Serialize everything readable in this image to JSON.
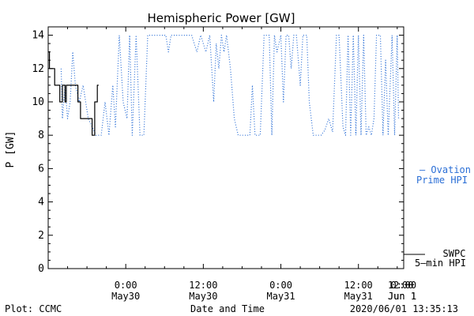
{
  "chart_data": {
    "type": "line",
    "title": "Hemispheric Power [GW]",
    "xlabel": "Date and Time",
    "ylabel": "P [GW]",
    "ylim": [
      0,
      14.5
    ],
    "xlim_hours": [
      -12,
      43
    ],
    "y_ticks": [
      0,
      2,
      4,
      6,
      8,
      10,
      12,
      14
    ],
    "x_ticks": [
      {
        "h": 0,
        "time": "0:00",
        "date": "May30"
      },
      {
        "h": 12,
        "time": "12:00",
        "date": "May30"
      },
      {
        "h": 24,
        "time": "0:00",
        "date": "May31"
      },
      {
        "h": 36,
        "time": "12:00",
        "date": "May31"
      },
      {
        "h": 48,
        "time": "0:00",
        "date": "Jun 1"
      },
      {
        "h": 60,
        "time": "12:00",
        "date": "Jun 1"
      }
    ],
    "grid": false,
    "series": [
      {
        "name": "Ovation Prime HPI",
        "legend_line1": "— Ovation",
        "legend_line2": "Prime HPI",
        "style": "dotted",
        "color": "#2b6fd6",
        "points": [
          [
            -10,
            12
          ],
          [
            -9.8,
            9
          ],
          [
            -9.4,
            11
          ],
          [
            -9,
            9
          ],
          [
            -8.6,
            10
          ],
          [
            -8.2,
            13
          ],
          [
            -7.8,
            11
          ],
          [
            -7.2,
            10
          ],
          [
            -6.6,
            11
          ],
          [
            -5.8,
            9
          ],
          [
            -4.6,
            8
          ],
          [
            -3.8,
            8
          ],
          [
            -3.2,
            10
          ],
          [
            -2.6,
            8
          ],
          [
            -2,
            11
          ],
          [
            -1.6,
            8.5
          ],
          [
            -1,
            14
          ],
          [
            -0.4,
            10
          ],
          [
            0.2,
            9
          ],
          [
            0.6,
            14
          ],
          [
            1,
            8
          ],
          [
            1.6,
            14
          ],
          [
            2.2,
            8
          ],
          [
            2.8,
            8
          ],
          [
            3.4,
            14
          ],
          [
            4,
            14
          ],
          [
            5.5,
            14
          ],
          [
            6.2,
            14
          ],
          [
            6.6,
            13
          ],
          [
            7,
            14
          ],
          [
            8,
            14
          ],
          [
            9,
            14
          ],
          [
            10.2,
            14
          ],
          [
            11,
            13
          ],
          [
            11.6,
            14
          ],
          [
            12.4,
            13
          ],
          [
            13,
            14
          ],
          [
            13.6,
            10
          ],
          [
            14,
            13.5
          ],
          [
            14.4,
            12
          ],
          [
            14.8,
            14
          ],
          [
            15.2,
            13
          ],
          [
            15.6,
            14
          ],
          [
            16.2,
            12
          ],
          [
            16.8,
            9
          ],
          [
            17.4,
            8
          ],
          [
            18,
            8
          ],
          [
            18.6,
            8
          ],
          [
            19.2,
            8
          ],
          [
            19.6,
            11
          ],
          [
            20,
            8
          ],
          [
            20.4,
            8
          ],
          [
            20.8,
            8
          ],
          [
            21.4,
            14
          ],
          [
            22.2,
            14
          ],
          [
            22.6,
            8
          ],
          [
            23,
            14
          ],
          [
            23.4,
            13
          ],
          [
            24,
            14
          ],
          [
            24.4,
            10
          ],
          [
            24.8,
            14
          ],
          [
            25.2,
            14
          ],
          [
            25.6,
            12
          ],
          [
            26,
            14
          ],
          [
            26.4,
            14
          ],
          [
            27,
            11
          ],
          [
            27.4,
            14
          ],
          [
            28,
            14
          ],
          [
            28.4,
            10
          ],
          [
            29,
            8
          ],
          [
            29.6,
            8
          ],
          [
            30.2,
            8
          ],
          [
            30.8,
            8.3
          ],
          [
            31.4,
            9
          ],
          [
            32,
            8.2
          ],
          [
            32.6,
            14
          ],
          [
            33,
            14
          ],
          [
            33.6,
            8.5
          ],
          [
            34,
            8
          ],
          [
            34.4,
            14
          ],
          [
            34.8,
            8
          ],
          [
            35.2,
            14
          ],
          [
            35.6,
            8
          ],
          [
            36,
            14
          ],
          [
            36.4,
            8
          ],
          [
            36.8,
            14
          ],
          [
            37.2,
            8
          ],
          [
            37.6,
            8.5
          ],
          [
            38,
            8
          ],
          [
            38.4,
            9
          ],
          [
            38.8,
            14
          ],
          [
            39.4,
            14
          ],
          [
            39.8,
            8
          ],
          [
            40.2,
            12.5
          ],
          [
            40.6,
            8
          ],
          [
            41.2,
            14
          ],
          [
            41.6,
            8
          ],
          [
            42,
            14
          ],
          [
            42.2,
            9
          ]
        ]
      },
      {
        "name": "SWPC 5-min HPI",
        "legend_line1": "SWPC",
        "legend_line2": "5–min HPI",
        "style": "solid",
        "color": "#000000",
        "points": [
          [
            -12,
            13
          ],
          [
            -11.8,
            13
          ],
          [
            -11.8,
            12
          ],
          [
            -11,
            12
          ],
          [
            -11,
            11
          ],
          [
            -10.2,
            11
          ],
          [
            -10.2,
            10
          ],
          [
            -9.8,
            10
          ],
          [
            -9.8,
            11
          ],
          [
            -9.4,
            11
          ],
          [
            -9.4,
            10
          ],
          [
            -9.2,
            10
          ],
          [
            -9.2,
            11
          ],
          [
            -7.4,
            11
          ],
          [
            -7.4,
            10
          ],
          [
            -7,
            10
          ],
          [
            -7,
            9
          ],
          [
            -5.2,
            9
          ],
          [
            -5.2,
            8
          ],
          [
            -4.8,
            8
          ],
          [
            -4.8,
            10
          ],
          [
            -4.4,
            10
          ],
          [
            -4.4,
            11
          ],
          [
            -4.2,
            11
          ]
        ]
      }
    ]
  },
  "footer": {
    "left": "Plot: CCMC",
    "center": "Date and Time",
    "right": "2020/06/01 13:35:13"
  }
}
